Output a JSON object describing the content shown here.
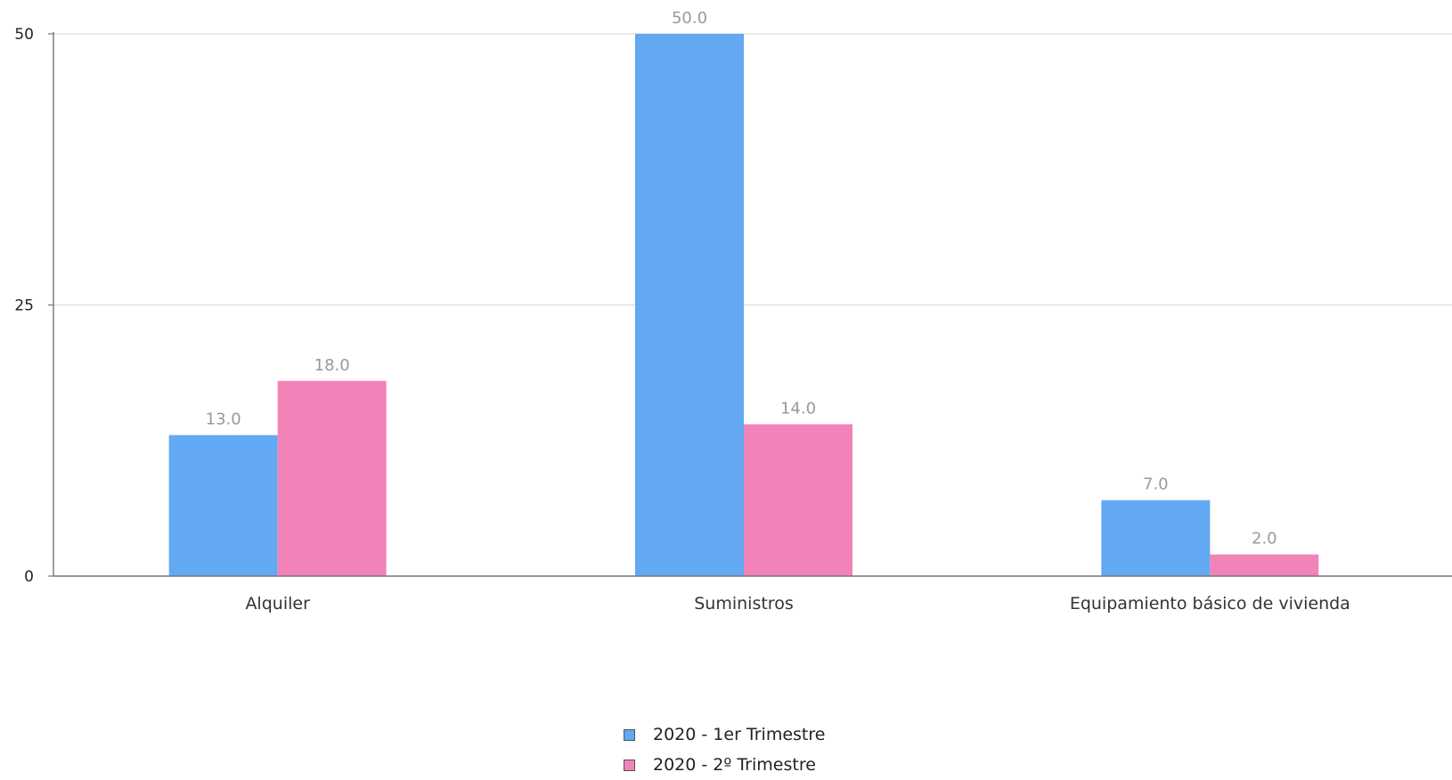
{
  "chart_data": {
    "type": "bar",
    "categories": [
      "Alquiler",
      "Suministros",
      "Equipamiento básico de vivienda"
    ],
    "series": [
      {
        "name": "2020 - 1er Trimestre",
        "values": [
          13.0,
          50.0,
          7.0
        ],
        "color": "#62a8f3"
      },
      {
        "name": "2020 - 2º Trimestre",
        "values": [
          18.0,
          14.0,
          2.0
        ],
        "color": "#f283b9"
      }
    ],
    "data_labels": [
      [
        "13.0",
        "50.0",
        "7.0"
      ],
      [
        "18.0",
        "14.0",
        "2.0"
      ]
    ],
    "ylim": [
      0,
      50
    ],
    "yticks": [
      0,
      25,
      50
    ],
    "ytick_labels": [
      "0",
      "25",
      "50"
    ],
    "grid": true,
    "legend_position": "bottom-center",
    "title": "",
    "xlabel": "",
    "ylabel": ""
  }
}
